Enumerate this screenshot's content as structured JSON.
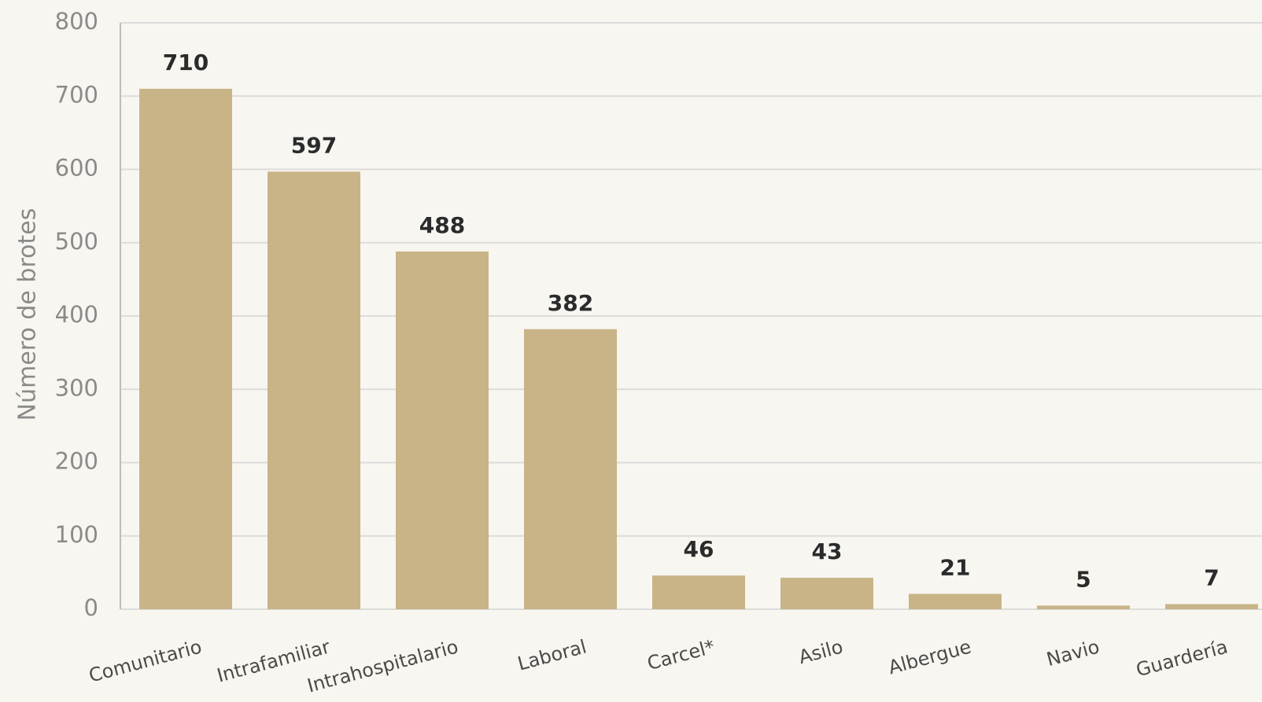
{
  "chart_data": {
    "type": "bar",
    "y_label": "Número de brotes",
    "categories": [
      "Comunitario",
      "Intrafamiliar",
      "Intrahospitalario",
      "Laboral",
      "Carcel*",
      "Asilo",
      "Albergue",
      "Navio",
      "Guardería"
    ],
    "values": [
      710,
      597,
      488,
      382,
      46,
      43,
      21,
      5,
      7
    ],
    "color": "#c9b487",
    "ylim": [
      0,
      800
    ],
    "yticks": [
      0,
      100,
      200,
      300,
      400,
      500,
      600,
      700,
      800
    ],
    "grid": true
  }
}
